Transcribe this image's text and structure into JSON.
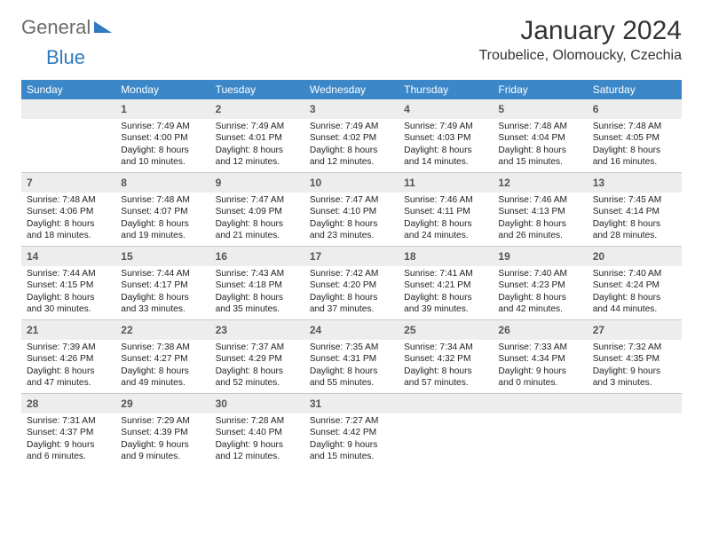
{
  "logo": {
    "word1": "General",
    "word2": "Blue"
  },
  "title": "January 2024",
  "location": "Troubelice, Olomoucky, Czechia",
  "colors": {
    "header_bg": "#3b87c8",
    "header_text": "#ffffff",
    "daynum_bg": "#ededed",
    "border": "#c9c9c9",
    "logo_gray": "#6b6b6b",
    "logo_blue": "#2f7ac0"
  },
  "weekdays": [
    "Sunday",
    "Monday",
    "Tuesday",
    "Wednesday",
    "Thursday",
    "Friday",
    "Saturday"
  ],
  "weeks": [
    [
      null,
      {
        "n": "1",
        "sunrise": "7:49 AM",
        "sunset": "4:00 PM",
        "daylight": "8 hours and 10 minutes."
      },
      {
        "n": "2",
        "sunrise": "7:49 AM",
        "sunset": "4:01 PM",
        "daylight": "8 hours and 12 minutes."
      },
      {
        "n": "3",
        "sunrise": "7:49 AM",
        "sunset": "4:02 PM",
        "daylight": "8 hours and 12 minutes."
      },
      {
        "n": "4",
        "sunrise": "7:49 AM",
        "sunset": "4:03 PM",
        "daylight": "8 hours and 14 minutes."
      },
      {
        "n": "5",
        "sunrise": "7:48 AM",
        "sunset": "4:04 PM",
        "daylight": "8 hours and 15 minutes."
      },
      {
        "n": "6",
        "sunrise": "7:48 AM",
        "sunset": "4:05 PM",
        "daylight": "8 hours and 16 minutes."
      }
    ],
    [
      {
        "n": "7",
        "sunrise": "7:48 AM",
        "sunset": "4:06 PM",
        "daylight": "8 hours and 18 minutes."
      },
      {
        "n": "8",
        "sunrise": "7:48 AM",
        "sunset": "4:07 PM",
        "daylight": "8 hours and 19 minutes."
      },
      {
        "n": "9",
        "sunrise": "7:47 AM",
        "sunset": "4:09 PM",
        "daylight": "8 hours and 21 minutes."
      },
      {
        "n": "10",
        "sunrise": "7:47 AM",
        "sunset": "4:10 PM",
        "daylight": "8 hours and 23 minutes."
      },
      {
        "n": "11",
        "sunrise": "7:46 AM",
        "sunset": "4:11 PM",
        "daylight": "8 hours and 24 minutes."
      },
      {
        "n": "12",
        "sunrise": "7:46 AM",
        "sunset": "4:13 PM",
        "daylight": "8 hours and 26 minutes."
      },
      {
        "n": "13",
        "sunrise": "7:45 AM",
        "sunset": "4:14 PM",
        "daylight": "8 hours and 28 minutes."
      }
    ],
    [
      {
        "n": "14",
        "sunrise": "7:44 AM",
        "sunset": "4:15 PM",
        "daylight": "8 hours and 30 minutes."
      },
      {
        "n": "15",
        "sunrise": "7:44 AM",
        "sunset": "4:17 PM",
        "daylight": "8 hours and 33 minutes."
      },
      {
        "n": "16",
        "sunrise": "7:43 AM",
        "sunset": "4:18 PM",
        "daylight": "8 hours and 35 minutes."
      },
      {
        "n": "17",
        "sunrise": "7:42 AM",
        "sunset": "4:20 PM",
        "daylight": "8 hours and 37 minutes."
      },
      {
        "n": "18",
        "sunrise": "7:41 AM",
        "sunset": "4:21 PM",
        "daylight": "8 hours and 39 minutes."
      },
      {
        "n": "19",
        "sunrise": "7:40 AM",
        "sunset": "4:23 PM",
        "daylight": "8 hours and 42 minutes."
      },
      {
        "n": "20",
        "sunrise": "7:40 AM",
        "sunset": "4:24 PM",
        "daylight": "8 hours and 44 minutes."
      }
    ],
    [
      {
        "n": "21",
        "sunrise": "7:39 AM",
        "sunset": "4:26 PM",
        "daylight": "8 hours and 47 minutes."
      },
      {
        "n": "22",
        "sunrise": "7:38 AM",
        "sunset": "4:27 PM",
        "daylight": "8 hours and 49 minutes."
      },
      {
        "n": "23",
        "sunrise": "7:37 AM",
        "sunset": "4:29 PM",
        "daylight": "8 hours and 52 minutes."
      },
      {
        "n": "24",
        "sunrise": "7:35 AM",
        "sunset": "4:31 PM",
        "daylight": "8 hours and 55 minutes."
      },
      {
        "n": "25",
        "sunrise": "7:34 AM",
        "sunset": "4:32 PM",
        "daylight": "8 hours and 57 minutes."
      },
      {
        "n": "26",
        "sunrise": "7:33 AM",
        "sunset": "4:34 PM",
        "daylight": "9 hours and 0 minutes."
      },
      {
        "n": "27",
        "sunrise": "7:32 AM",
        "sunset": "4:35 PM",
        "daylight": "9 hours and 3 minutes."
      }
    ],
    [
      {
        "n": "28",
        "sunrise": "7:31 AM",
        "sunset": "4:37 PM",
        "daylight": "9 hours and 6 minutes."
      },
      {
        "n": "29",
        "sunrise": "7:29 AM",
        "sunset": "4:39 PM",
        "daylight": "9 hours and 9 minutes."
      },
      {
        "n": "30",
        "sunrise": "7:28 AM",
        "sunset": "4:40 PM",
        "daylight": "9 hours and 12 minutes."
      },
      {
        "n": "31",
        "sunrise": "7:27 AM",
        "sunset": "4:42 PM",
        "daylight": "9 hours and 15 minutes."
      },
      null,
      null,
      null
    ]
  ],
  "labels": {
    "sunrise": "Sunrise:",
    "sunset": "Sunset:",
    "daylight": "Daylight:"
  }
}
